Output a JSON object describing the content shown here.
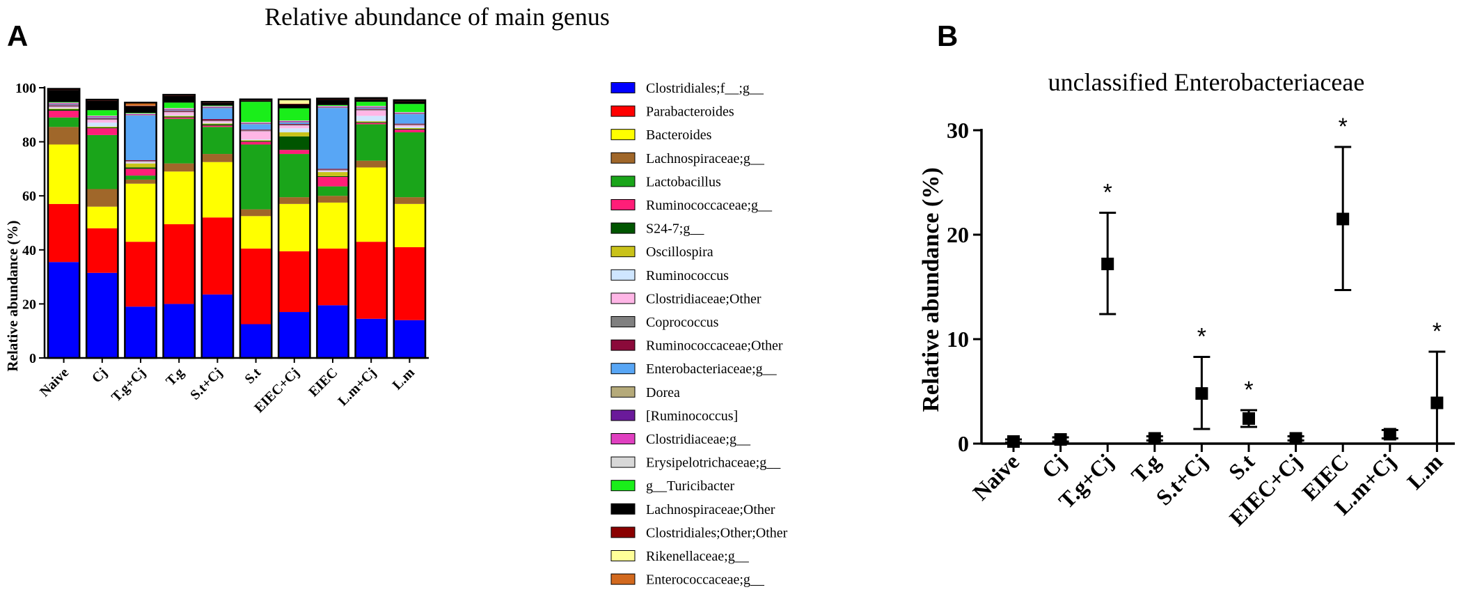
{
  "panels": {
    "a_letter": "A",
    "b_letter": "B"
  },
  "chart_data": [
    {
      "id": "A",
      "type": "bar",
      "stacked": true,
      "title": "Relative abundance of main genus",
      "xlabel": "",
      "ylabel": "Relative abundance (%)",
      "ylim": [
        0,
        100
      ],
      "yticks": [
        0,
        20,
        40,
        60,
        80,
        100
      ],
      "legend_position": "right",
      "categories": [
        "Naive",
        "Cj",
        "T.g+Cj",
        "T.g",
        "S.t+Cj",
        "S.t",
        "EIEC+Cj",
        "EIEC",
        "L.m+Cj",
        "L.m"
      ],
      "series": [
        {
          "name": "Clostridiales;f__;g__",
          "color": "#0000ff",
          "values": [
            35.5,
            31.5,
            19,
            20,
            23.5,
            12.5,
            17,
            19.5,
            14.5,
            14
          ]
        },
        {
          "name": "Parabacteroides",
          "color": "#ff0000",
          "values": [
            21.5,
            16.5,
            24,
            29.5,
            28.5,
            28,
            22.5,
            21,
            28.5,
            27
          ]
        },
        {
          "name": "Bacteroides",
          "color": "#ffff00",
          "values": [
            22,
            8,
            21.5,
            19.5,
            20.5,
            12,
            17.5,
            17,
            27.5,
            16
          ]
        },
        {
          "name": "Lachnospiraceae;g__",
          "color": "#a0672a",
          "values": [
            6.5,
            6.5,
            1.5,
            3,
            3,
            2.5,
            2.5,
            2.5,
            2.5,
            2.5
          ]
        },
        {
          "name": "Lactobacillus",
          "color": "#1aa51a",
          "values": [
            3.5,
            20,
            1.5,
            16.5,
            10,
            24,
            16,
            3.5,
            13.5,
            24
          ]
        },
        {
          "name": "Ruminococcaceae;g__",
          "color": "#ff1e78",
          "values": [
            2.5,
            2.5,
            2.5,
            0.5,
            0.5,
            1,
            1.5,
            3.5,
            0.5,
            1
          ]
        },
        {
          "name": "S24-7;g__",
          "color": "#005500",
          "values": [
            0.5,
            0.3,
            0.5,
            0.3,
            0.5,
            0.3,
            5,
            0.3,
            0.3,
            0.3
          ]
        },
        {
          "name": "Oscillospira",
          "color": "#c9c21a",
          "values": [
            0.3,
            0.3,
            1.5,
            0.3,
            0.3,
            0.3,
            1.5,
            1.5,
            0.3,
            0.3
          ]
        },
        {
          "name": "Ruminococcus",
          "color": "#cfe6ff",
          "values": [
            0.3,
            1.5,
            0.3,
            0.3,
            0.3,
            0.3,
            1.5,
            0.3,
            2,
            0.5
          ]
        },
        {
          "name": "Clostridiaceae;Other",
          "color": "#ffb6e6",
          "values": [
            0.3,
            1,
            0.3,
            1,
            0.5,
            3,
            1,
            0.3,
            2,
            0.5
          ]
        },
        {
          "name": "Coprococcus",
          "color": "#808080",
          "values": [
            0.3,
            0.3,
            0.3,
            0.3,
            0.3,
            0.3,
            0.3,
            0.3,
            0.3,
            0.3
          ]
        },
        {
          "name": "Ruminococcaceae;Other",
          "color": "#8b0a3a",
          "values": [
            0.3,
            0.3,
            0.3,
            0.3,
            0.5,
            0.3,
            0.3,
            0.3,
            0.3,
            0.3
          ]
        },
        {
          "name": "Enterobacteriaceae;g__",
          "color": "#58a6f5",
          "values": [
            0.2,
            0.2,
            16.5,
            0.2,
            4,
            2,
            0.5,
            22.5,
            0.3,
            3.5
          ]
        },
        {
          "name": "Dorea",
          "color": "#b5aa7a",
          "values": [
            0.2,
            0.2,
            0.2,
            0.2,
            0.2,
            0.2,
            0.2,
            0.2,
            0.2,
            0.2
          ]
        },
        {
          "name": "[Ruminococcus]",
          "color": "#6a1a9a",
          "values": [
            0.2,
            0.2,
            0.2,
            0.2,
            0.2,
            0.2,
            0.2,
            0.2,
            0.2,
            0.2
          ]
        },
        {
          "name": "Clostridiaceae;g__",
          "color": "#e040c0",
          "values": [
            0.2,
            0.2,
            0.2,
            0.2,
            0.2,
            0.2,
            0.2,
            0.2,
            0.2,
            0.2
          ]
        },
        {
          "name": "Erysipelotrichaceae;g__",
          "color": "#d8d8d8",
          "values": [
            0.2,
            0.2,
            0.2,
            0.2,
            0.2,
            0.2,
            0.2,
            0.2,
            0.2,
            0.2
          ]
        },
        {
          "name": "g__Turicibacter",
          "color": "#1aee1a",
          "values": [
            0.2,
            2,
            0.2,
            2,
            0.2,
            7.5,
            4.5,
            0.3,
            1.5,
            3
          ]
        },
        {
          "name": "Lachnospiraceae;Other",
          "color": "#000000",
          "values": [
            4.5,
            3.5,
            2.5,
            2.5,
            1,
            0.5,
            1.5,
            2,
            1,
            1
          ]
        },
        {
          "name": "Clostridiales;Other;Other",
          "color": "#8a0000",
          "values": [
            0.2,
            0.2,
            0.2,
            0.2,
            0.2,
            0.2,
            0.2,
            0.2,
            0.2,
            0.2
          ]
        },
        {
          "name": "Rikenellaceae;g__",
          "color": "#ffff99",
          "values": [
            0.1,
            0.1,
            0.1,
            0.1,
            0.1,
            0.1,
            1.5,
            0.1,
            0.1,
            0.1
          ]
        },
        {
          "name": "Enterococcaceae;g__",
          "color": "#d2691e",
          "values": [
            0.1,
            0.1,
            1,
            0.1,
            0.1,
            0.1,
            0.1,
            0.1,
            0.1,
            0.1
          ]
        }
      ]
    },
    {
      "id": "B",
      "type": "scatter",
      "title": "unclassified Enterobacteriaceae",
      "xlabel": "",
      "ylabel": "Relative abundance (%)",
      "ylim": [
        0,
        30
      ],
      "yticks": [
        0,
        10,
        20,
        30
      ],
      "categories": [
        "Naive",
        "Cj",
        "T.g+Cj",
        "T.g",
        "S.t+Cj",
        "S.t",
        "EIEC+Cj",
        "EIEC",
        "L.m+Cj",
        "L.m"
      ],
      "values": [
        0.2,
        0.4,
        17.2,
        0.5,
        4.8,
        2.4,
        0.5,
        21.5,
        0.9,
        3.9
      ],
      "error_low": [
        0.1,
        0.2,
        12.4,
        0.3,
        1.4,
        1.6,
        0.3,
        14.7,
        0.5,
        0.0
      ],
      "error_high": [
        0.4,
        0.6,
        22.1,
        0.7,
        8.3,
        3.2,
        0.7,
        28.4,
        1.3,
        8.8
      ],
      "significance": [
        "",
        "",
        "*",
        "",
        "*",
        "*",
        "",
        "*",
        "",
        "*"
      ]
    }
  ]
}
